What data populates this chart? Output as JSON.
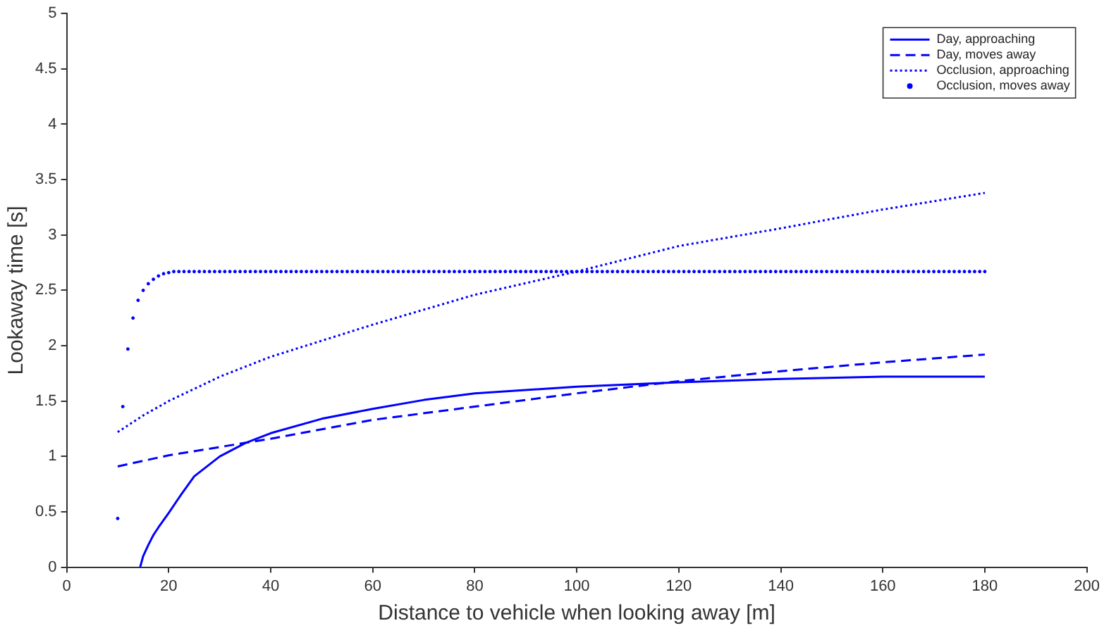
{
  "chart_data": {
    "type": "line",
    "xlabel": "Distance to vehicle when looking away [m]",
    "ylabel": "Lookaway time [s]",
    "xlim": [
      0,
      200
    ],
    "xticks": [
      0,
      20,
      40,
      60,
      80,
      100,
      120,
      140,
      160,
      180,
      200
    ],
    "ylim": [
      0,
      5
    ],
    "yticks": [
      0,
      0.5,
      1,
      1.5,
      2,
      2.5,
      3,
      3.5,
      4,
      4.5,
      5
    ],
    "grid": false,
    "legend": "top right",
    "series": [
      {
        "name": "Day, approaching",
        "color": "#0000ff",
        "line_style": "solid",
        "x": [
          14.4,
          15,
          16,
          17,
          18,
          20,
          22.5,
          25,
          30,
          35,
          40,
          50,
          60,
          70,
          80,
          100,
          120,
          140,
          160,
          180
        ],
        "values": [
          0,
          0.1,
          0.2,
          0.29,
          0.36,
          0.49,
          0.66,
          0.82,
          1.0,
          1.12,
          1.21,
          1.34,
          1.43,
          1.51,
          1.57,
          1.63,
          1.67,
          1.7,
          1.72,
          1.72
        ]
      },
      {
        "name": "Day, moves away",
        "color": "#0000ff",
        "line_style": "dashed",
        "x": [
          10,
          20,
          40,
          60,
          80,
          100,
          120,
          140,
          160,
          180
        ],
        "values": [
          0.91,
          1.01,
          1.16,
          1.33,
          1.45,
          1.57,
          1.68,
          1.77,
          1.85,
          1.92
        ]
      },
      {
        "name": "Occlusion, approaching",
        "color": "#0000ff",
        "line_style": "dotted",
        "x": [
          10,
          15,
          20,
          30,
          40,
          60,
          80,
          100,
          120,
          140,
          160,
          180
        ],
        "values": [
          1.22,
          1.37,
          1.5,
          1.72,
          1.9,
          2.19,
          2.46,
          2.67,
          2.9,
          3.06,
          3.23,
          3.38
        ]
      },
      {
        "name": "Occlusion, moves away",
        "color": "#0000ff",
        "type": "scatter",
        "marker": "circle",
        "x": [
          10,
          11,
          12,
          13,
          14,
          15,
          16,
          17,
          18,
          19,
          20,
          21,
          22,
          23,
          24,
          25,
          26,
          27,
          28,
          29,
          30,
          31,
          32,
          33,
          34,
          35,
          36,
          37,
          38,
          39,
          40,
          41,
          42,
          43,
          44,
          45,
          46,
          47,
          48,
          49,
          50,
          51,
          52,
          53,
          54,
          55,
          56,
          57,
          58,
          59,
          60,
          61,
          62,
          63,
          64,
          65,
          66,
          67,
          68,
          69,
          70,
          71,
          72,
          73,
          74,
          75,
          76,
          77,
          78,
          79,
          80,
          81,
          82,
          83,
          84,
          85,
          86,
          87,
          88,
          89,
          90,
          91,
          92,
          93,
          94,
          95,
          96,
          97,
          98,
          99,
          100,
          101,
          102,
          103,
          104,
          105,
          106,
          107,
          108,
          109,
          110,
          111,
          112,
          113,
          114,
          115,
          116,
          117,
          118,
          119,
          120,
          121,
          122,
          123,
          124,
          125,
          126,
          127,
          128,
          129,
          130,
          131,
          132,
          133,
          134,
          135,
          136,
          137,
          138,
          139,
          140,
          141,
          142,
          143,
          144,
          145,
          146,
          147,
          148,
          149,
          150,
          151,
          152,
          153,
          154,
          155,
          156,
          157,
          158,
          159,
          160,
          161,
          162,
          163,
          164,
          165,
          166,
          167,
          168,
          169,
          170,
          171,
          172,
          173,
          174,
          175,
          176,
          177,
          178,
          179,
          180
        ],
        "values": [
          0.44,
          1.45,
          1.97,
          2.25,
          2.41,
          2.5,
          2.56,
          2.6,
          2.63,
          2.65,
          2.66,
          2.67,
          2.67,
          2.67,
          2.67,
          2.67,
          2.67,
          2.67,
          2.67,
          2.67,
          2.67,
          2.67,
          2.67,
          2.67,
          2.67,
          2.67,
          2.67,
          2.67,
          2.67,
          2.67,
          2.67,
          2.67,
          2.67,
          2.67,
          2.67,
          2.67,
          2.67,
          2.67,
          2.67,
          2.67,
          2.67,
          2.67,
          2.67,
          2.67,
          2.67,
          2.67,
          2.67,
          2.67,
          2.67,
          2.67,
          2.67,
          2.67,
          2.67,
          2.67,
          2.67,
          2.67,
          2.67,
          2.67,
          2.67,
          2.67,
          2.67,
          2.67,
          2.67,
          2.67,
          2.67,
          2.67,
          2.67,
          2.67,
          2.67,
          2.67,
          2.67,
          2.67,
          2.67,
          2.67,
          2.67,
          2.67,
          2.67,
          2.67,
          2.67,
          2.67,
          2.67,
          2.67,
          2.67,
          2.67,
          2.67,
          2.67,
          2.67,
          2.67,
          2.67,
          2.67,
          2.67,
          2.67,
          2.67,
          2.67,
          2.67,
          2.67,
          2.67,
          2.67,
          2.67,
          2.67,
          2.67,
          2.67,
          2.67,
          2.67,
          2.67,
          2.67,
          2.67,
          2.67,
          2.67,
          2.67,
          2.67,
          2.67,
          2.67,
          2.67,
          2.67,
          2.67,
          2.67,
          2.67,
          2.67,
          2.67,
          2.67,
          2.67,
          2.67,
          2.67,
          2.67,
          2.67,
          2.67,
          2.67,
          2.67,
          2.67,
          2.67,
          2.67,
          2.67,
          2.67,
          2.67,
          2.67,
          2.67,
          2.67,
          2.67,
          2.67,
          2.67,
          2.67,
          2.67,
          2.67,
          2.67,
          2.67,
          2.67,
          2.67,
          2.67,
          2.67,
          2.67,
          2.67,
          2.67,
          2.67,
          2.67,
          2.67,
          2.67,
          2.67,
          2.67,
          2.67,
          2.67,
          2.67,
          2.67,
          2.67,
          2.67,
          2.67,
          2.67,
          2.67,
          2.67,
          2.67,
          2.67
        ]
      }
    ]
  }
}
